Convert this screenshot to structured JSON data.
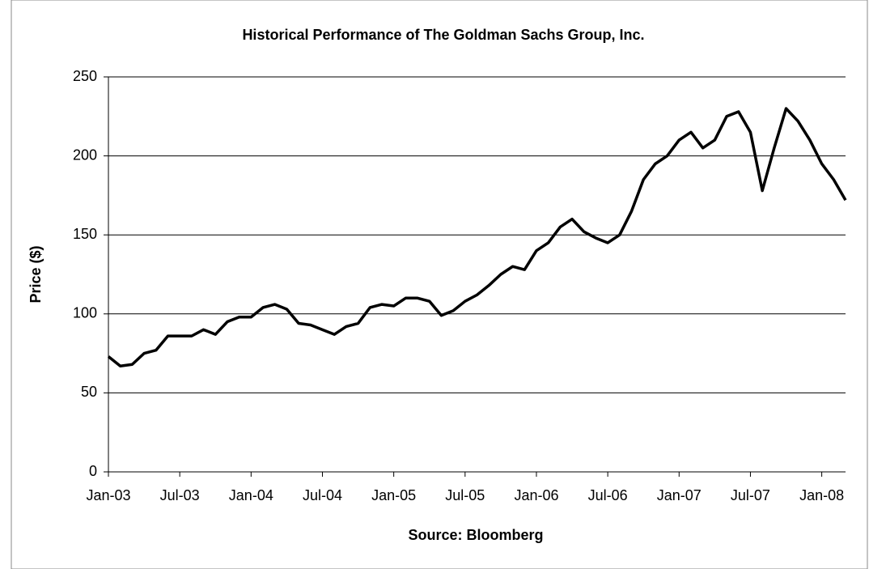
{
  "chart_data": {
    "type": "line",
    "title": "Historical Performance of The Goldman Sachs Group, Inc.",
    "x_label": "Source: Bloomberg",
    "y_label": "Price ($)",
    "x": [
      "2003-01",
      "2003-02",
      "2003-03",
      "2003-04",
      "2003-05",
      "2003-06",
      "2003-07",
      "2003-08",
      "2003-09",
      "2003-10",
      "2003-11",
      "2003-12",
      "2004-01",
      "2004-02",
      "2004-03",
      "2004-04",
      "2004-05",
      "2004-06",
      "2004-07",
      "2004-08",
      "2004-09",
      "2004-10",
      "2004-11",
      "2004-12",
      "2005-01",
      "2005-02",
      "2005-03",
      "2005-04",
      "2005-05",
      "2005-06",
      "2005-07",
      "2005-08",
      "2005-09",
      "2005-10",
      "2005-11",
      "2005-12",
      "2006-01",
      "2006-02",
      "2006-03",
      "2006-04",
      "2006-05",
      "2006-06",
      "2006-07",
      "2006-08",
      "2006-09",
      "2006-10",
      "2006-11",
      "2006-12",
      "2007-01",
      "2007-02",
      "2007-03",
      "2007-04",
      "2007-05",
      "2007-06",
      "2007-07",
      "2007-08",
      "2007-09",
      "2007-10",
      "2007-11",
      "2007-12",
      "2008-01",
      "2008-02",
      "2008-03"
    ],
    "series": [
      {
        "name": "Price",
        "color": "#000000",
        "values": [
          73,
          67,
          68,
          75,
          77,
          86,
          86,
          86,
          90,
          87,
          95,
          98,
          98,
          104,
          106,
          103,
          94,
          93,
          90,
          87,
          92,
          94,
          104,
          106,
          105,
          110,
          110,
          108,
          99,
          102,
          108,
          112,
          118,
          125,
          130,
          128,
          140,
          145,
          155,
          160,
          152,
          148,
          145,
          150,
          165,
          185,
          195,
          200,
          210,
          215,
          205,
          210,
          225,
          228,
          215,
          178,
          205,
          230,
          222,
          210,
          195,
          185,
          172
        ]
      }
    ],
    "xlim": [
      "2003-01",
      "2008-03"
    ],
    "xticks": [
      {
        "value": "2003-01",
        "label": "Jan-03"
      },
      {
        "value": "2003-07",
        "label": "Jul-03"
      },
      {
        "value": "2004-01",
        "label": "Jan-04"
      },
      {
        "value": "2004-07",
        "label": "Jul-04"
      },
      {
        "value": "2005-01",
        "label": "Jan-05"
      },
      {
        "value": "2005-07",
        "label": "Jul-05"
      },
      {
        "value": "2006-01",
        "label": "Jan-06"
      },
      {
        "value": "2006-07",
        "label": "Jul-06"
      },
      {
        "value": "2007-01",
        "label": "Jan-07"
      },
      {
        "value": "2007-07",
        "label": "Jul-07"
      },
      {
        "value": "2008-01",
        "label": "Jan-08"
      }
    ],
    "ylim": [
      0,
      250
    ],
    "yticks": [
      0,
      50,
      100,
      150,
      200,
      250
    ],
    "grid": true
  }
}
